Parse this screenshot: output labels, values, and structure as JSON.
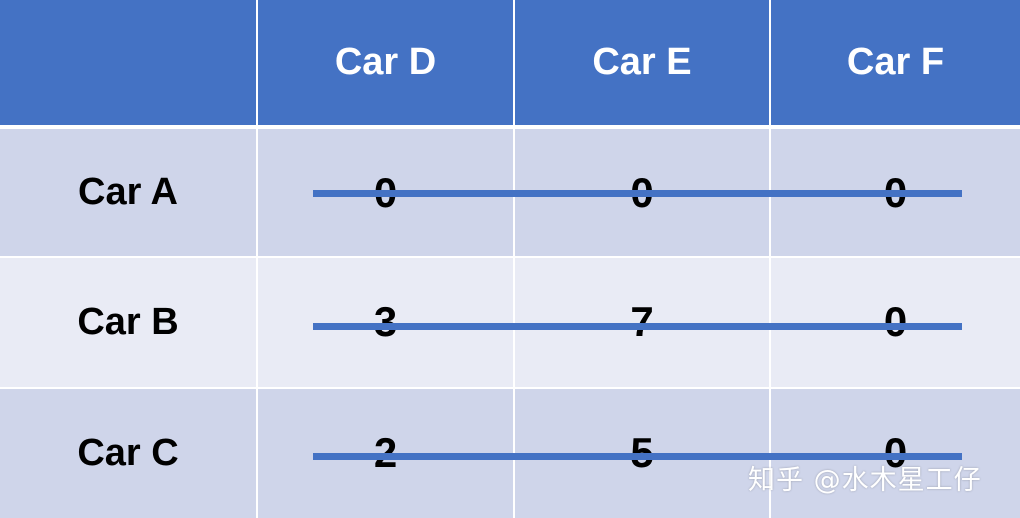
{
  "table": {
    "corner_label": "",
    "column_headers": [
      "Car D",
      "Car E",
      "Car F"
    ],
    "rows": [
      {
        "label": "Car A",
        "values": [
          "0",
          "0",
          "0"
        ]
      },
      {
        "label": "Car B",
        "values": [
          "3",
          "7",
          "0"
        ]
      },
      {
        "label": "Car C",
        "values": [
          "2",
          "5",
          "0"
        ]
      }
    ]
  },
  "strikethrough_rows": [
    "Car A",
    "Car B",
    "Car C"
  ],
  "watermark": "知乎 @水木星工仔",
  "colors": {
    "header_bg": "#4472c4",
    "header_text": "#ffffff",
    "row_band_dark": "#cfd5ea",
    "row_band_light": "#e9ebf5",
    "strike_line": "#4472c4",
    "cell_text": "#000000"
  }
}
